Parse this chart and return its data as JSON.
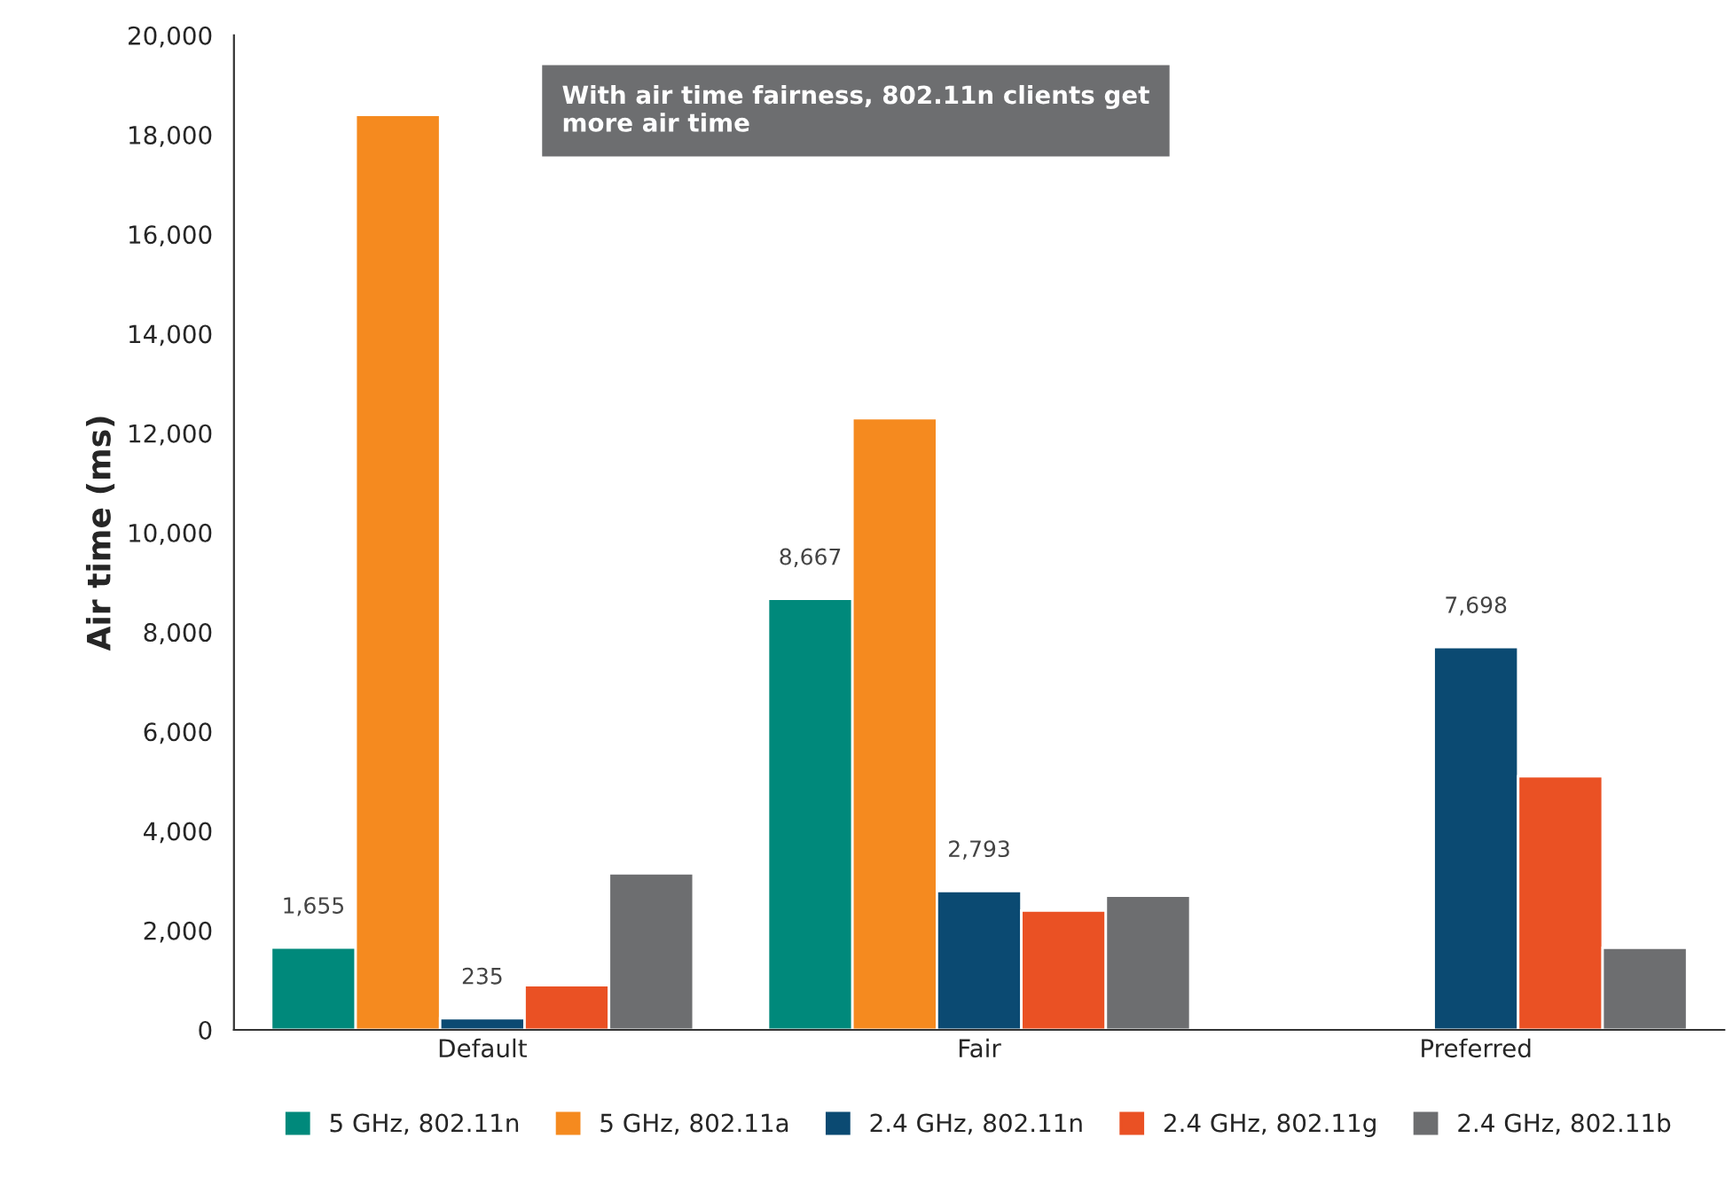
{
  "chart_data": {
    "type": "bar",
    "ylabel": "Air time (ms)",
    "categories": [
      "Default",
      "Fair",
      "Preferred"
    ],
    "series": [
      {
        "name": "5 GHz, 802.11n",
        "color": "#00897b",
        "values": [
          1655,
          8667,
          null
        ],
        "value_labels": [
          "1,655",
          "8,667",
          null
        ]
      },
      {
        "name": "5 GHz, 802.11a",
        "color": "#f58a1f",
        "values": [
          18400,
          12300,
          null
        ]
      },
      {
        "name": "2.4 GHz, 802.11n",
        "color": "#0b4a72",
        "values": [
          235,
          2793,
          7698
        ],
        "value_labels": [
          "235",
          "2,793",
          "7,698"
        ]
      },
      {
        "name": "2.4 GHz, 802.11g",
        "color": "#ea5124",
        "values": [
          900,
          2400,
          5100
        ]
      },
      {
        "name": "2.4 GHz, 802.11b",
        "color": "#6d6e70",
        "values": [
          3150,
          2700,
          1650
        ]
      }
    ],
    "ylim": [
      0,
      20000
    ],
    "yticks": [
      0,
      {
        "value": 2000,
        "label": "2,000"
      },
      {
        "value": 4000,
        "label": "4,000"
      },
      {
        "value": 6000,
        "label": "6,000"
      },
      {
        "value": 8000,
        "label": "8,000"
      },
      {
        "value": 10000,
        "label": "10,000"
      },
      {
        "value": 12000,
        "label": "12,000"
      },
      {
        "value": 14000,
        "label": "14,000"
      },
      {
        "value": 16000,
        "label": "16,000"
      },
      {
        "value": 18000,
        "label": "18,000"
      },
      {
        "value": 20000,
        "label": "20,000"
      }
    ],
    "annotations": [
      "With air time fairness, 802.11n clients get more air time"
    ],
    "legend": "bottom",
    "grid": false
  }
}
